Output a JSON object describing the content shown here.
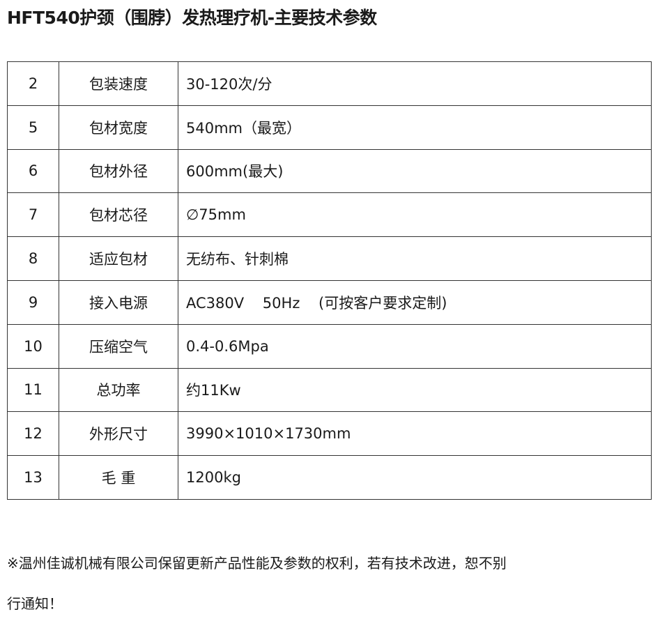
{
  "title": "HFT540护颈（围脖）发热理疗机-主要技术参数",
  "rows": [
    {
      "no": "2",
      "name": "包装速度",
      "value": "30-120次/分"
    },
    {
      "no": "5",
      "name": "包材宽度",
      "value": "540mm（最宽）"
    },
    {
      "no": "6",
      "name": "包材外径",
      "value": "600mm(最大)"
    },
    {
      "no": "7",
      "name": "包材芯径",
      "value": "∅75mm"
    },
    {
      "no": "8",
      "name": "适应包材",
      "value": "无纺布、针刺棉"
    },
    {
      "no": "9",
      "name": "接入电源",
      "value": "AC380V    50Hz    (可按客户要求定制)"
    },
    {
      "no": "10",
      "name": "压缩空气",
      "value": "0.4-0.6Mpa"
    },
    {
      "no": "11",
      "name": "总功率",
      "value": "约11Kw"
    },
    {
      "no": "12",
      "name": "外形尺寸",
      "value": "3990×1010×1730mm"
    },
    {
      "no": "13",
      "name": "毛    重",
      "value": "1200kg"
    }
  ],
  "note_line1": "※温州佳诚机械有限公司保留更新产品性能及参数的权利，若有技术改进，恕不别",
  "note_line2": "行通知！"
}
